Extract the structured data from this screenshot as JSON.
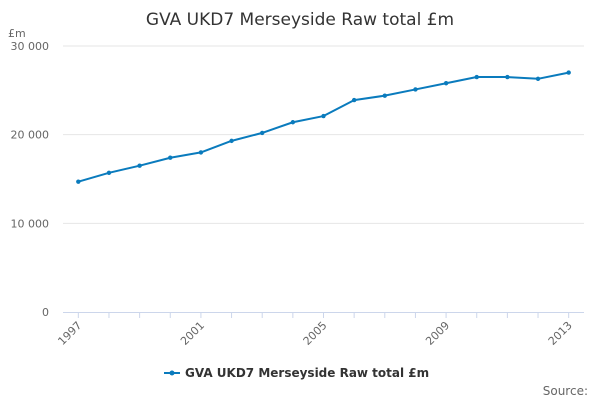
{
  "chart_data": {
    "type": "line",
    "title": "GVA UKD7 Merseyside Raw total £m",
    "ylabel": "£m",
    "xlabel": "",
    "x": [
      1997,
      1998,
      1999,
      2000,
      2001,
      2002,
      2003,
      2004,
      2005,
      2006,
      2007,
      2008,
      2009,
      2010,
      2011,
      2012,
      2013
    ],
    "series": [
      {
        "name": "GVA UKD7 Merseyside Raw total £m",
        "color": "#0a7bbd",
        "values": [
          14700,
          15700,
          16500,
          17400,
          18000,
          19300,
          20200,
          21400,
          22100,
          23900,
          24400,
          25100,
          25800,
          26500,
          26500,
          26300,
          27000
        ]
      }
    ],
    "xticks": [
      "1997",
      "2001",
      "2005",
      "2009",
      "2013"
    ],
    "yticks": [
      "0",
      "10 000",
      "20 000",
      "30 000"
    ],
    "ytick_values": [
      0,
      10000,
      20000,
      30000
    ],
    "ylim": [
      0,
      30000
    ],
    "xlim": [
      1997,
      2013
    ],
    "grid": true,
    "legend": "bottom-center",
    "source_label": "Source:"
  }
}
